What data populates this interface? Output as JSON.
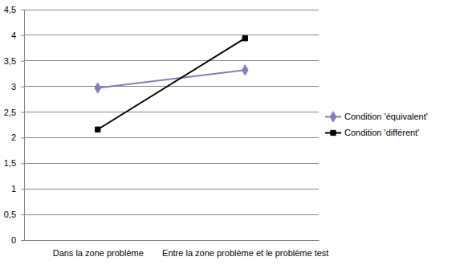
{
  "chart_data": {
    "type": "line",
    "categories": [
      "Dans la zone problème",
      "Entre la zone problème et le problème test"
    ],
    "series": [
      {
        "name": "Condition 'équivalent'",
        "color": "#7f7fbf",
        "marker": "diamond",
        "line_style": "solid",
        "values": [
          2.97,
          3.32
        ]
      },
      {
        "name": "Condition 'différent'",
        "color": "#000000",
        "marker": "square",
        "line_style": "solid",
        "values": [
          2.16,
          3.94
        ]
      }
    ],
    "ylim": [
      0,
      4.5
    ],
    "yticks": [
      0,
      {
        "value": 0.5,
        "label": "0,5"
      },
      1,
      {
        "value": 1.5,
        "label": "1,5"
      },
      2,
      {
        "value": 2.5,
        "label": "2,5"
      },
      3,
      {
        "value": 3.5,
        "label": "3,5"
      },
      4,
      {
        "value": 4.5,
        "label": "4,5"
      }
    ],
    "grid": true,
    "legend": "right"
  }
}
